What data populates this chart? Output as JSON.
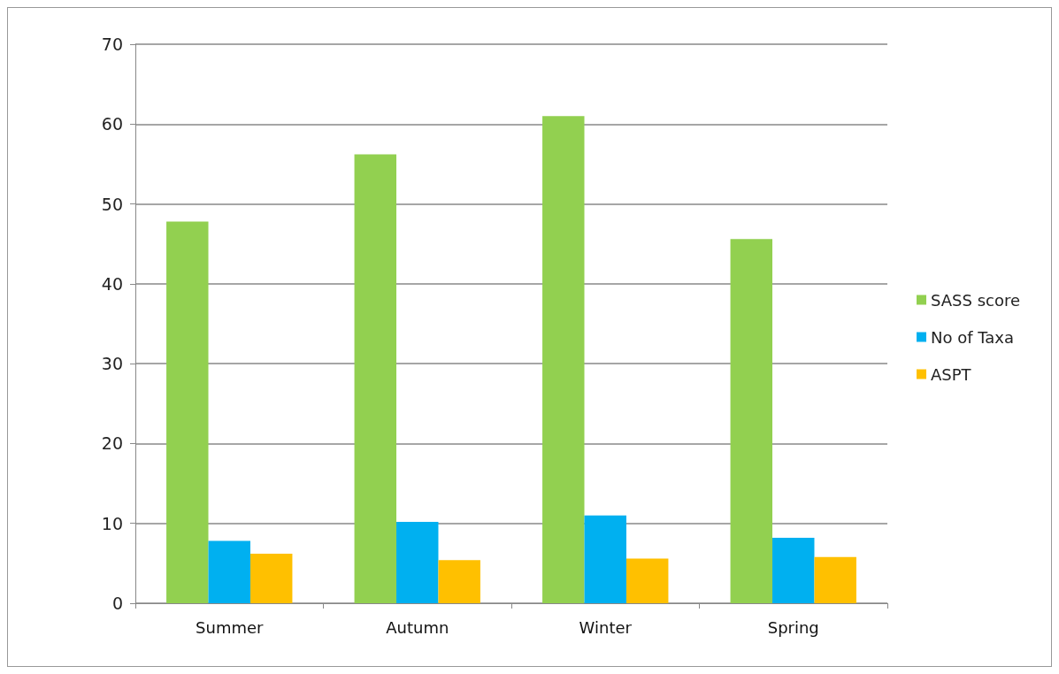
{
  "chart_data": {
    "type": "bar",
    "categories": [
      "Summer",
      "Autumn",
      "Winter",
      "Spring"
    ],
    "series": [
      {
        "name": "SASS score",
        "color": "#92d050",
        "values": [
          47.8,
          56.2,
          61.0,
          45.6
        ]
      },
      {
        "name": "No of Taxa",
        "color": "#00b0f0",
        "values": [
          7.8,
          10.2,
          11.0,
          8.2
        ]
      },
      {
        "name": "ASPT",
        "color": "#ffc000",
        "values": [
          6.2,
          5.4,
          5.6,
          5.8
        ]
      }
    ],
    "ylim": [
      0,
      70
    ],
    "yticks": [
      0,
      10,
      20,
      30,
      40,
      50,
      60,
      70
    ],
    "grid": "y",
    "legend": "right"
  }
}
